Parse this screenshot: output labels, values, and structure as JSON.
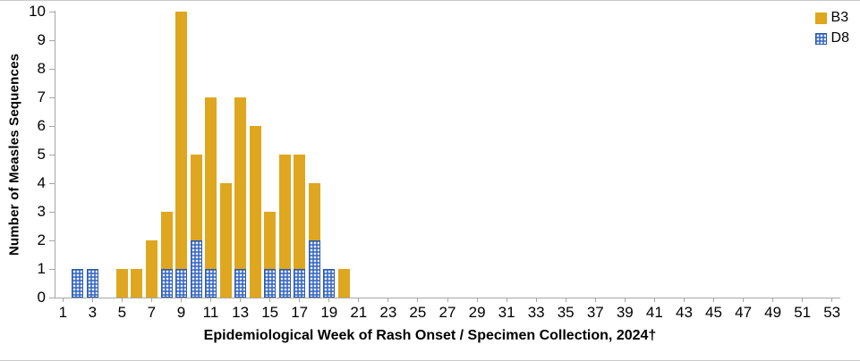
{
  "chart_data": {
    "type": "bar",
    "stacked": true,
    "xlabel": "Epidemiological Week of Rash Onset / Specimen Collection, 2024†",
    "ylabel": "Number of Measles Sequences",
    "ylim": [
      0,
      10
    ],
    "x_range": [
      1,
      53
    ],
    "y_ticks": [
      0,
      1,
      2,
      3,
      4,
      5,
      6,
      7,
      8,
      9,
      10
    ],
    "x_tick_labels": [
      1,
      3,
      5,
      7,
      9,
      11,
      13,
      15,
      17,
      19,
      21,
      23,
      25,
      27,
      29,
      31,
      33,
      35,
      37,
      39,
      41,
      43,
      45,
      47,
      49,
      51,
      53
    ],
    "legend_position": "top-right",
    "grid": false,
    "stack_order": [
      "D8",
      "B3"
    ],
    "legend": [
      {
        "name": "B3",
        "color": "#dfa61f",
        "pattern": "solid"
      },
      {
        "name": "D8",
        "color": "#3e6dc5",
        "pattern": "dots"
      }
    ],
    "bars": [
      {
        "week": 2,
        "B3": 0,
        "D8": 1
      },
      {
        "week": 3,
        "B3": 0,
        "D8": 1
      },
      {
        "week": 5,
        "B3": 1,
        "D8": 0
      },
      {
        "week": 6,
        "B3": 1,
        "D8": 0
      },
      {
        "week": 7,
        "B3": 2,
        "D8": 0
      },
      {
        "week": 8,
        "B3": 2,
        "D8": 1
      },
      {
        "week": 9,
        "B3": 9,
        "D8": 1
      },
      {
        "week": 10,
        "B3": 3,
        "D8": 2
      },
      {
        "week": 11,
        "B3": 6,
        "D8": 1
      },
      {
        "week": 12,
        "B3": 4,
        "D8": 0
      },
      {
        "week": 13,
        "B3": 6,
        "D8": 1
      },
      {
        "week": 14,
        "B3": 6,
        "D8": 0
      },
      {
        "week": 15,
        "B3": 2,
        "D8": 1
      },
      {
        "week": 16,
        "B3": 4,
        "D8": 1
      },
      {
        "week": 17,
        "B3": 4,
        "D8": 1
      },
      {
        "week": 18,
        "B3": 2,
        "D8": 2
      },
      {
        "week": 19,
        "B3": 0,
        "D8": 1
      },
      {
        "week": 20,
        "B3": 1,
        "D8": 0
      }
    ]
  }
}
